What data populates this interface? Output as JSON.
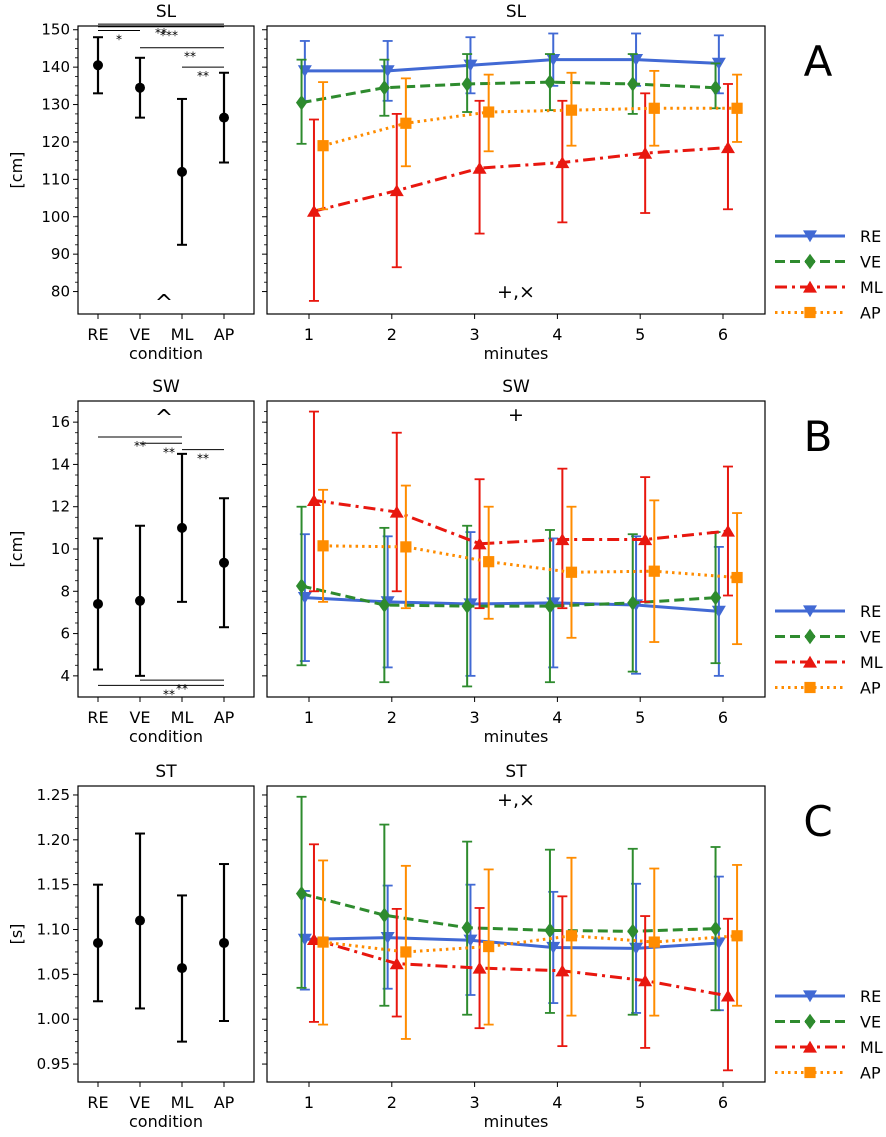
{
  "condition_colors": {
    "RE": "#4169d4",
    "VE": "#2e8b2e",
    "ML": "#e8170f",
    "AP": "#ff8c00"
  },
  "legend": [
    {
      "name": "RE",
      "marker": "triangle-down",
      "dash": "solid"
    },
    {
      "name": "VE",
      "marker": "diamond",
      "dash": "dashed"
    },
    {
      "name": "ML",
      "marker": "triangle-up",
      "dash": "dashdot"
    },
    {
      "name": "AP",
      "marker": "square",
      "dash": "dotted"
    }
  ],
  "chart_data": [
    {
      "type": "scatter",
      "panel": "A",
      "view": "by-condition",
      "title": "SL",
      "ylabel": "[cm]",
      "xlabel": "condition",
      "ylim": [
        74,
        151
      ],
      "yticks": [
        80,
        90,
        100,
        110,
        120,
        130,
        140,
        150
      ],
      "categories": [
        "RE",
        "VE",
        "ML",
        "AP"
      ],
      "values": [
        140.5,
        134.5,
        112.0,
        126.5
      ],
      "err_low": [
        133,
        126.5,
        92.5,
        114.5
      ],
      "err_high": [
        148,
        142.5,
        131.5,
        138.5
      ],
      "brackets": [
        {
          "from": "RE",
          "to": "AP",
          "text": "**",
          "y": 151.5
        },
        {
          "from": "RE",
          "to": "AP",
          "text": "***",
          "y": 150.8
        },
        {
          "from": "RE",
          "to": "VE",
          "text": "*",
          "y": 149.8
        },
        {
          "from": "VE",
          "to": "AP",
          "text": "**",
          "y": 145.2
        },
        {
          "from": "ML",
          "to": "AP",
          "text": "**",
          "y": 140.0
        }
      ],
      "annotations": [
        {
          "text": "^",
          "at": "ML",
          "pos": "bottom"
        }
      ]
    },
    {
      "type": "line",
      "panel": "A",
      "view": "by-minute",
      "title": "SL",
      "xlabel": "minutes",
      "ylim": [
        74,
        151
      ],
      "x": [
        1,
        2,
        3,
        4,
        5,
        6
      ],
      "series": [
        {
          "name": "RE",
          "values": [
            139,
            139,
            140.5,
            142,
            142,
            141
          ],
          "err_low": [
            131,
            131,
            133,
            135,
            135,
            133
          ],
          "err_high": [
            147,
            147,
            148,
            149,
            149,
            148.5
          ]
        },
        {
          "name": "VE",
          "values": [
            130.5,
            134.5,
            135.5,
            136,
            135.5,
            134.5
          ],
          "err_low": [
            119.5,
            127,
            128,
            128.5,
            127.5,
            129
          ],
          "err_high": [
            142,
            142,
            143.5,
            143.5,
            143.5,
            141
          ]
        },
        {
          "name": "ML",
          "values": [
            101.5,
            107,
            113,
            114.5,
            117,
            118.5
          ],
          "err_low": [
            77.5,
            86.5,
            95.5,
            98.5,
            101,
            102
          ],
          "err_high": [
            126,
            127.5,
            131,
            131,
            133,
            135.5
          ]
        },
        {
          "name": "AP",
          "values": [
            119,
            125,
            128,
            128.5,
            129,
            129
          ],
          "err_low": [
            102,
            113.5,
            117.5,
            119,
            119,
            120
          ],
          "err_high": [
            136,
            137,
            138,
            138.5,
            139,
            138
          ]
        }
      ],
      "annotations": [
        {
          "text": "+,×",
          "x": 3.5,
          "pos": "bottom"
        }
      ]
    },
    {
      "type": "scatter",
      "panel": "B",
      "view": "by-condition",
      "title": "SW",
      "ylabel": "[cm]",
      "xlabel": "condition",
      "ylim": [
        3.0,
        17.0
      ],
      "yticks": [
        4,
        6,
        8,
        10,
        12,
        14,
        16
      ],
      "categories": [
        "RE",
        "VE",
        "ML",
        "AP"
      ],
      "values": [
        7.4,
        7.55,
        11.0,
        9.35
      ],
      "err_low": [
        4.3,
        4.0,
        7.5,
        6.3
      ],
      "err_high": [
        10.5,
        11.1,
        14.5,
        12.4
      ],
      "brackets": [
        {
          "from": "RE",
          "to": "ML",
          "text": "**",
          "y": 15.3
        },
        {
          "from": "VE",
          "to": "ML",
          "text": "**",
          "y": 15.0
        },
        {
          "from": "ML",
          "to": "AP",
          "text": "**",
          "y": 14.7
        },
        {
          "from": "RE",
          "to": "AP",
          "text": "**",
          "y": 3.55
        },
        {
          "from": "VE",
          "to": "AP",
          "text": "**",
          "y": 3.8
        }
      ],
      "annotations": [
        {
          "text": "^",
          "at": "ML",
          "pos": "top"
        }
      ]
    },
    {
      "type": "line",
      "panel": "B",
      "view": "by-minute",
      "title": "SW",
      "xlabel": "minutes",
      "ylim": [
        3.0,
        17.0
      ],
      "x": [
        1,
        2,
        3,
        4,
        5,
        6
      ],
      "series": [
        {
          "name": "RE",
          "values": [
            7.7,
            7.5,
            7.4,
            7.45,
            7.35,
            7.05
          ],
          "err_low": [
            4.7,
            4.4,
            4.0,
            4.4,
            4.1,
            4.0
          ],
          "err_high": [
            10.7,
            10.6,
            10.8,
            10.5,
            10.6,
            10.1
          ]
        },
        {
          "name": "VE",
          "values": [
            8.25,
            7.35,
            7.3,
            7.3,
            7.45,
            7.7
          ],
          "err_low": [
            4.5,
            3.7,
            3.5,
            3.7,
            4.2,
            4.6
          ],
          "err_high": [
            12.0,
            11.0,
            11.1,
            10.9,
            10.7,
            10.8
          ]
        },
        {
          "name": "ML",
          "values": [
            12.3,
            11.75,
            10.25,
            10.45,
            10.45,
            10.85
          ],
          "err_low": [
            8.0,
            8.0,
            7.2,
            7.2,
            7.5,
            7.8
          ],
          "err_high": [
            16.5,
            15.5,
            13.3,
            13.8,
            13.4,
            13.9
          ]
        },
        {
          "name": "AP",
          "values": [
            10.15,
            10.1,
            9.4,
            8.9,
            8.95,
            8.65
          ],
          "err_low": [
            7.5,
            7.2,
            6.7,
            5.8,
            5.6,
            5.5
          ],
          "err_high": [
            12.8,
            13.0,
            12.0,
            12.0,
            12.3,
            11.7
          ]
        }
      ],
      "annotations": [
        {
          "text": "+",
          "x": 3.5,
          "pos": "top"
        }
      ]
    },
    {
      "type": "scatter",
      "panel": "C",
      "view": "by-condition",
      "title": "ST",
      "ylabel": "[s]",
      "xlabel": "condition",
      "ylim": [
        0.93,
        1.26
      ],
      "yticks": [
        "0.95",
        "1.00",
        "1.05",
        "1.10",
        "1.15",
        "1.20",
        "1.25"
      ],
      "categories": [
        "RE",
        "VE",
        "ML",
        "AP"
      ],
      "values": [
        1.085,
        1.11,
        1.057,
        1.085
      ],
      "err_low": [
        1.02,
        1.012,
        0.975,
        0.998
      ],
      "err_high": [
        1.15,
        1.207,
        1.138,
        1.173
      ]
    },
    {
      "type": "line",
      "panel": "C",
      "view": "by-minute",
      "title": "ST",
      "xlabel": "minutes",
      "ylim": [
        0.93,
        1.26
      ],
      "x": [
        1,
        2,
        3,
        4,
        5,
        6
      ],
      "series": [
        {
          "name": "RE",
          "values": [
            1.089,
            1.091,
            1.088,
            1.08,
            1.079,
            1.085
          ],
          "err_low": [
            1.033,
            1.034,
            1.027,
            1.018,
            1.007,
            1.01
          ],
          "err_high": [
            1.143,
            1.149,
            1.15,
            1.142,
            1.151,
            1.159
          ]
        },
        {
          "name": "VE",
          "values": [
            1.14,
            1.116,
            1.102,
            1.099,
            1.098,
            1.101
          ],
          "err_low": [
            1.035,
            1.015,
            1.005,
            1.007,
            1.005,
            1.01
          ],
          "err_high": [
            1.248,
            1.217,
            1.198,
            1.189,
            1.19,
            1.192
          ]
        },
        {
          "name": "ML",
          "values": [
            1.089,
            1.062,
            1.057,
            1.054,
            1.043,
            1.026
          ],
          "err_low": [
            0.997,
            1.003,
            0.99,
            0.97,
            0.968,
            0.943
          ],
          "err_high": [
            1.195,
            1.123,
            1.124,
            1.137,
            1.115,
            1.112
          ]
        },
        {
          "name": "AP",
          "values": [
            1.086,
            1.075,
            1.081,
            1.093,
            1.086,
            1.093
          ],
          "err_low": [
            0.994,
            0.978,
            0.994,
            1.004,
            1.004,
            1.015
          ],
          "err_high": [
            1.177,
            1.171,
            1.167,
            1.18,
            1.168,
            1.172
          ]
        }
      ],
      "annotations": [
        {
          "text": "+,×",
          "x": 3.5,
          "pos": "top"
        }
      ]
    }
  ],
  "panel_labels": [
    "A",
    "B",
    "C"
  ]
}
